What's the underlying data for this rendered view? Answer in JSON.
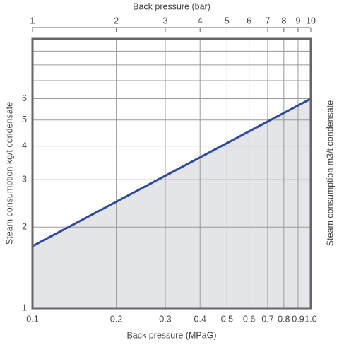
{
  "chart_data": {
    "type": "line",
    "xlabel": "Back pressure (MPaG)",
    "x2label": "Back pressure (bar)",
    "ylabel": "Steam consumption kg/t condensate",
    "y2label": "Steam consumption m3/t condensate",
    "x": [
      0.1,
      1.0
    ],
    "values": [
      1.7,
      6.0
    ],
    "color": "#2d4a9c",
    "fill": "#e4e5e8",
    "xscale": "log",
    "yscale": "log",
    "xlim": [
      0.1,
      1.0
    ],
    "xticks": [
      0.1,
      0.2,
      0.3,
      0.4,
      0.5,
      0.6,
      0.7,
      0.8,
      0.9,
      {
        "value": 1.0,
        "label": "1.0"
      }
    ],
    "x2lim": [
      1,
      10
    ],
    "x2ticks": [
      1,
      2,
      3,
      4,
      5,
      6,
      7,
      8,
      9,
      10
    ],
    "ylim": [
      1,
      10
    ],
    "yticks": [
      1,
      2,
      3,
      4,
      5,
      6
    ],
    "ygrid": [
      7,
      8,
      9
    ],
    "grid": true
  }
}
